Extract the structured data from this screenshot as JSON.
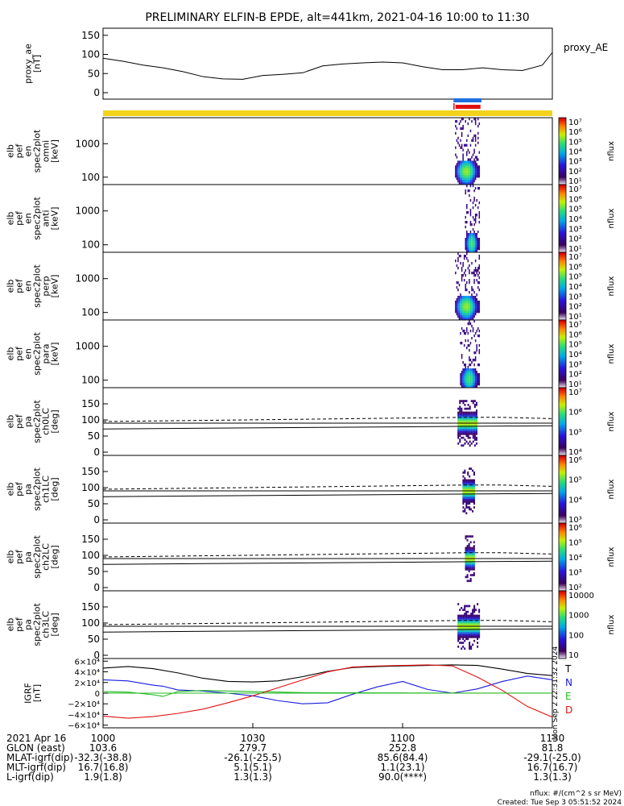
{
  "title": "PRELIMINARY ELFIN-B EPDE, alt=441km, 2021-04-16 10:00 to 11:30",
  "colors": {
    "blue_bar": "#1f6fe0",
    "red_bar": "#e01010",
    "yellow_bar": "#f2d21a",
    "trace_T": "#000000",
    "trace_N": "#1a1adf",
    "trace_E": "#22bb22",
    "trace_D": "#e01010"
  },
  "panels": [
    {
      "id": "ae",
      "ylabel": [
        "proxy_ae",
        "[nT]"
      ],
      "yticks": [
        "150",
        "100",
        "50",
        "0"
      ],
      "legend": "proxy_AE"
    },
    {
      "id": "omni",
      "ylabel": [
        "elb",
        "pef",
        "en",
        "spec2plot",
        "omni",
        "[keV]"
      ],
      "yticks": [
        "1000",
        "100"
      ],
      "cbar_ticks": [
        "10⁷",
        "10⁶",
        "10⁵",
        "10⁴",
        "10³",
        "10²",
        "10¹"
      ],
      "cbar_label": "nflux"
    },
    {
      "id": "anti",
      "ylabel": [
        "elb",
        "pef",
        "en",
        "spec2plot",
        "anti",
        "[keV]"
      ],
      "yticks": [
        "1000",
        "100"
      ],
      "cbar_ticks": [
        "10⁷",
        "10⁶",
        "10⁵",
        "10⁴",
        "10³",
        "10²",
        "10¹"
      ],
      "cbar_label": "nflux"
    },
    {
      "id": "perp",
      "ylabel": [
        "elb",
        "pef",
        "en",
        "spec2plot",
        "perp",
        "[keV]"
      ],
      "yticks": [
        "1000",
        "100"
      ],
      "cbar_ticks": [
        "10⁷",
        "10⁶",
        "10⁵",
        "10⁴",
        "10³",
        "10²",
        "10¹"
      ],
      "cbar_label": "nflux"
    },
    {
      "id": "para",
      "ylabel": [
        "elb",
        "pef",
        "en",
        "spec2plot",
        "para",
        "[keV]"
      ],
      "yticks": [
        "1000",
        "100"
      ],
      "cbar_ticks": [
        "10⁷",
        "10⁶",
        "10⁵",
        "10⁴",
        "10³",
        "10²",
        "10¹"
      ],
      "cbar_label": "nflux"
    },
    {
      "id": "ch0",
      "ylabel": [
        "elb",
        "pef",
        "pa",
        "spec2plot",
        "ch0LC",
        "[deg]"
      ],
      "yticks": [
        "150",
        "100",
        "50",
        "0"
      ],
      "cbar_ticks": [
        "10⁷",
        "10⁶",
        "10⁵",
        "10⁴"
      ],
      "cbar_label": "nflux"
    },
    {
      "id": "ch1",
      "ylabel": [
        "elb",
        "pef",
        "pa",
        "spec2plot",
        "ch1LC",
        "[deg]"
      ],
      "yticks": [
        "150",
        "100",
        "50",
        "0"
      ],
      "cbar_ticks": [
        "10⁶",
        "10⁵",
        "10⁴",
        "10³"
      ],
      "cbar_label": "nflux"
    },
    {
      "id": "ch2",
      "ylabel": [
        "elb",
        "pef",
        "pa",
        "spec2plot",
        "ch2LC",
        "[deg]"
      ],
      "yticks": [
        "150",
        "100",
        "50",
        "0"
      ],
      "cbar_ticks": [
        "10⁶",
        "10⁵",
        "10⁴",
        "10³",
        "10²"
      ],
      "cbar_label": "nflux"
    },
    {
      "id": "ch3",
      "ylabel": [
        "elb",
        "pef",
        "pa",
        "spec2plot",
        "ch3LC",
        "[deg]"
      ],
      "yticks": [
        "150",
        "100",
        "50",
        "0"
      ],
      "cbar_ticks": [
        "10000",
        "1000",
        "100",
        "10"
      ],
      "cbar_label": "nflux"
    },
    {
      "id": "igrf",
      "ylabel": [
        "IGRF",
        "[nT]"
      ],
      "yticks": [
        "6×10⁴",
        "4×10⁴",
        "2×10⁴",
        "0",
        "−2×10⁴",
        "−4×10⁴",
        "−6×10⁴"
      ],
      "legend": [
        "T",
        "N",
        "E",
        "D"
      ],
      "stamp": "Mon Sep  2 22:31:32 2024"
    }
  ],
  "footer": {
    "rows": [
      [
        "2021 Apr 16",
        "1000",
        "1030",
        "1100",
        "1130"
      ],
      [
        "GLON (east)",
        "103.6",
        "279.7",
        "252.8",
        "81.8"
      ],
      [
        "MLAT-igrf(dip)",
        "-32.3(-38.8)",
        "-26.1(-25.5)",
        "85.6(84.4)",
        "-29.1(-25.0)"
      ],
      [
        "MLT-igrf(dip)",
        "16.7(16.8)",
        "5.1(5.1)",
        "1.1(23.1)",
        "16.7(16.7)"
      ],
      [
        "L-igrf(dip)",
        "1.9(1.8)",
        "1.3(1.3)",
        "90.0(****)",
        "1.3(1.3)"
      ]
    ],
    "units_note": "nflux: #/(cm^2 s sr MeV)",
    "created": "Created: Tue Sep  3 05:51:52 2024"
  },
  "chart_data": [
    {
      "type": "line",
      "title": "PRELIMINARY ELFIN-B EPDE, alt=441km, 2021-04-16 10:00 to 11:30",
      "xlabel": "",
      "ylabel": "proxy_ae [nT]",
      "x_unit": "minutes after 10:00 UT",
      "xlim": [
        0,
        90
      ],
      "ylim": [
        0,
        160
      ],
      "series": [
        {
          "name": "proxy_AE",
          "x": [
            0,
            4,
            8,
            12,
            16,
            20,
            24,
            28,
            32,
            36,
            40,
            44,
            48,
            52,
            56,
            60,
            64,
            68,
            72,
            76,
            80,
            84,
            88,
            90
          ],
          "values": [
            90,
            82,
            72,
            65,
            55,
            42,
            36,
            35,
            45,
            48,
            52,
            70,
            75,
            78,
            80,
            78,
            68,
            60,
            60,
            65,
            60,
            58,
            72,
            105
          ]
        }
      ]
    },
    {
      "type": "heatmap",
      "ylabel": "elb pef en spec2plot omni [keV]",
      "ylim": [
        60,
        6000
      ],
      "y_scale": "log",
      "z_label": "nflux",
      "z_range": [
        10,
        10000000
      ],
      "active_interval_minutes": [
        70.5,
        75.5
      ],
      "peak_energy_keV": 150,
      "peak_nflux": 100000
    },
    {
      "type": "heatmap",
      "ylabel": "elb pef en spec2plot anti [keV]",
      "ylim": [
        60,
        6000
      ],
      "y_scale": "log",
      "z_label": "nflux",
      "z_range": [
        10,
        10000000
      ],
      "active_interval_minutes": [
        72.5,
        75.5
      ],
      "peak_energy_keV": 110,
      "peak_nflux": 30000
    },
    {
      "type": "heatmap",
      "ylabel": "elb pef en spec2plot perp [keV]",
      "ylim": [
        60,
        6000
      ],
      "y_scale": "log",
      "z_label": "nflux",
      "z_range": [
        10,
        10000000
      ],
      "active_interval_minutes": [
        70.5,
        75.5
      ],
      "peak_energy_keV": 150,
      "peak_nflux": 100000
    },
    {
      "type": "heatmap",
      "ylabel": "elb pef en spec2plot para [keV]",
      "ylim": [
        60,
        6000
      ],
      "y_scale": "log",
      "z_label": "nflux",
      "z_range": [
        10,
        10000000
      ],
      "active_interval_minutes": [
        71.5,
        75.5
      ],
      "peak_energy_keV": 110,
      "peak_nflux": 30000
    },
    {
      "type": "heatmap",
      "ylabel": "elb pef pa spec2plot ch0LC [deg]",
      "ylim": [
        0,
        180
      ],
      "z_label": "nflux",
      "active_interval_minutes": [
        71,
        75
      ],
      "center_pitch_angle_deg": 90,
      "loss_cone_solid_deg": {
        "x": [
          0,
          90
        ],
        "y": [
          72,
          82
        ]
      },
      "loss_cone_dashed_deg": {
        "x": [
          0,
          45,
          72,
          80,
          90
        ],
        "y": [
          95,
          103,
          108,
          108,
          104
        ]
      },
      "solid_upper_deg": 90
    },
    {
      "type": "heatmap",
      "ylabel": "elb pef pa spec2plot ch1LC [deg]",
      "ylim": [
        0,
        180
      ],
      "z_label": "nflux",
      "active_interval_minutes": [
        72,
        74.5
      ],
      "center_pitch_angle_deg": 90
    },
    {
      "type": "heatmap",
      "ylabel": "elb pef pa spec2plot ch2LC [deg]",
      "ylim": [
        0,
        180
      ],
      "z_label": "nflux",
      "active_interval_minutes": [
        72.5,
        74.5
      ],
      "center_pitch_angle_deg": 90
    },
    {
      "type": "heatmap",
      "ylabel": "elb pef pa spec2plot ch3LC [deg]",
      "ylim": [
        0,
        180
      ],
      "z_label": "nflux",
      "z_range": [
        10,
        10000
      ],
      "active_interval_minutes": [
        71,
        75.5
      ],
      "center_pitch_angle_deg": 90
    },
    {
      "type": "line",
      "ylabel": "IGRF [nT]",
      "ylim": [
        -65000,
        65000
      ],
      "x_unit": "minutes after 10:00 UT",
      "xlim": [
        0,
        90
      ],
      "series": [
        {
          "name": "T",
          "x": [
            0,
            5,
            10,
            15,
            20,
            25,
            30,
            35,
            40,
            45,
            50,
            55,
            60,
            65,
            70,
            75,
            80,
            85,
            90
          ],
          "values": [
            47000,
            50000,
            46000,
            38000,
            28000,
            22000,
            21000,
            23000,
            31000,
            41000,
            48000,
            50000,
            51000,
            52000,
            53000,
            52000,
            45000,
            37000,
            33000
          ]
        },
        {
          "name": "N",
          "x": [
            0,
            5,
            10,
            12,
            15,
            20,
            25,
            30,
            35,
            40,
            45,
            50,
            55,
            60,
            65,
            70,
            75,
            80,
            85,
            90
          ],
          "values": [
            25000,
            23000,
            15000,
            13000,
            6000,
            4000,
            0,
            -5000,
            -14000,
            -20000,
            -18000,
            -2000,
            12000,
            22000,
            7000,
            0,
            8000,
            22000,
            32000,
            25000
          ]
        },
        {
          "name": "E",
          "x": [
            0,
            5,
            10,
            12,
            15,
            20,
            25,
            30,
            35,
            40,
            45,
            50,
            55,
            60,
            65,
            70,
            75,
            80,
            85,
            90
          ],
          "values": [
            3000,
            2000,
            -3000,
            -6000,
            3000,
            5000,
            4000,
            3000,
            2000,
            1000,
            700,
            600,
            500,
            400,
            300,
            200,
            200,
            100,
            100,
            100
          ]
        },
        {
          "name": "D",
          "x": [
            0,
            5,
            10,
            15,
            20,
            25,
            30,
            35,
            40,
            45,
            50,
            55,
            60,
            65,
            70,
            75,
            80,
            85,
            90
          ],
          "values": [
            -43000,
            -47000,
            -44000,
            -38000,
            -30000,
            -18000,
            -5000,
            10000,
            25000,
            40000,
            49000,
            51000,
            52000,
            53000,
            51000,
            30000,
            5000,
            -25000,
            -45000
          ]
        }
      ]
    }
  ]
}
